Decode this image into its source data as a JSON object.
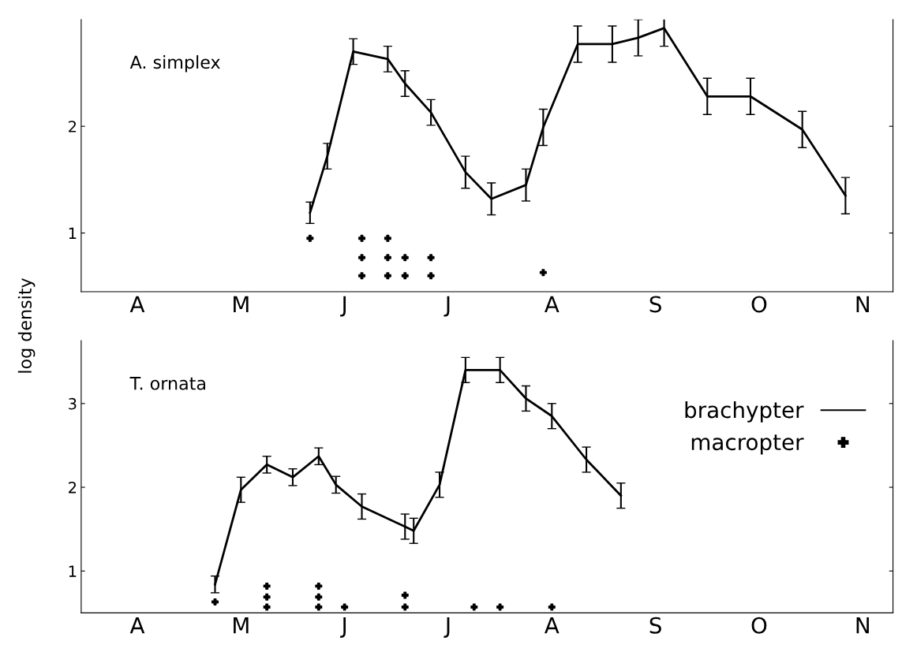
{
  "chart_data": [
    {
      "type": "line",
      "ylabel": "log density",
      "annotations": [
        "A. simplex"
      ],
      "ylim": [
        0.45,
        3.0
      ],
      "yticks": [
        1,
        2
      ],
      "grid": false,
      "legend": false,
      "categories": [
        null,
        null,
        null,
        null,
        null,
        null,
        "A",
        null,
        null,
        null,
        null,
        null,
        null,
        null,
        null,
        null,
        null,
        null,
        "M",
        null,
        null,
        null,
        null,
        null,
        null,
        null,
        null,
        null,
        null,
        null,
        "J",
        null,
        null,
        null,
        null,
        null,
        null,
        null,
        null,
        null,
        null,
        null,
        "J",
        null,
        null,
        null,
        null,
        null,
        null,
        null,
        null,
        null,
        null,
        null,
        "A",
        null,
        null,
        null,
        null,
        null,
        null,
        null,
        null,
        null,
        null,
        null,
        "S",
        null,
        null,
        null,
        null,
        null,
        null,
        null,
        null,
        null,
        null,
        null,
        "O",
        null,
        null,
        null,
        null,
        null,
        null,
        null,
        null,
        null,
        null,
        null,
        "N",
        null,
        null,
        null
      ],
      "series": [
        {
          "type": "line",
          "color": "#000000",
          "marker": "none",
          "line_style": "solid",
          "values": [
            null,
            null,
            null,
            null,
            null,
            null,
            null,
            null,
            null,
            null,
            null,
            null,
            null,
            null,
            null,
            null,
            null,
            null,
            null,
            null,
            null,
            null,
            null,
            null,
            null,
            null,
            1.19,
            null,
            1.72,
            null,
            null,
            2.7,
            null,
            null,
            null,
            2.63,
            null,
            2.4,
            null,
            null,
            2.13,
            null,
            null,
            null,
            1.57,
            null,
            null,
            1.32,
            null,
            null,
            null,
            1.45,
            null,
            1.99,
            null,
            null,
            null,
            2.77,
            null,
            null,
            null,
            2.77,
            null,
            null,
            2.83,
            null,
            null,
            2.92,
            null,
            null,
            null,
            null,
            2.28,
            null,
            null,
            null,
            null,
            2.28,
            null,
            null,
            null,
            null,
            null,
            1.97,
            null,
            null,
            null,
            null,
            1.35,
            null,
            null,
            null,
            null,
            null
          ],
          "errors": [
            null,
            null,
            null,
            null,
            null,
            null,
            null,
            null,
            null,
            null,
            null,
            null,
            null,
            null,
            null,
            null,
            null,
            null,
            null,
            null,
            null,
            null,
            null,
            null,
            null,
            null,
            0.1,
            null,
            0.12,
            null,
            null,
            0.12,
            null,
            null,
            null,
            0.12,
            null,
            0.12,
            null,
            null,
            0.12,
            null,
            null,
            null,
            0.15,
            null,
            null,
            0.15,
            null,
            null,
            null,
            0.15,
            null,
            0.17,
            null,
            null,
            null,
            0.17,
            null,
            null,
            null,
            0.17,
            null,
            null,
            0.17,
            null,
            null,
            0.17,
            null,
            null,
            null,
            null,
            0.17,
            null,
            null,
            null,
            null,
            0.17,
            null,
            null,
            null,
            null,
            null,
            0.17,
            null,
            null,
            null,
            null,
            0.17,
            null,
            null,
            null,
            null,
            null
          ]
        },
        {
          "type": "scatter",
          "color": "#000000",
          "marker": "cross",
          "values": [
            null,
            null,
            null,
            null,
            null,
            null,
            null,
            null,
            null,
            null,
            null,
            null,
            null,
            null,
            null,
            null,
            null,
            null,
            null,
            null,
            null,
            null,
            null,
            null,
            null,
            null,
            0.95,
            null,
            null,
            null,
            null,
            null,
            0.95,
            null,
            null,
            0.95,
            null,
            null,
            null,
            null,
            null,
            null,
            null,
            null,
            null,
            null,
            null,
            null,
            null,
            null,
            null,
            null,
            null,
            null,
            null,
            null,
            null,
            null,
            null,
            null,
            null,
            null,
            null,
            null,
            null,
            null,
            null,
            null,
            null,
            null,
            null,
            null,
            null,
            null,
            null,
            null,
            null,
            null,
            null,
            null,
            null,
            null,
            null,
            null,
            null,
            null,
            null,
            null,
            null,
            null,
            null,
            null,
            null,
            null
          ]
        },
        {
          "type": "scatter",
          "color": "#000000",
          "marker": "cross",
          "values": [
            null,
            null,
            null,
            null,
            null,
            null,
            null,
            null,
            null,
            null,
            null,
            null,
            null,
            null,
            null,
            null,
            null,
            null,
            null,
            null,
            null,
            null,
            null,
            null,
            null,
            null,
            null,
            null,
            null,
            null,
            null,
            null,
            0.77,
            null,
            null,
            0.77,
            null,
            0.77,
            null,
            null,
            0.77,
            null,
            null,
            null,
            null,
            null,
            null,
            null,
            null,
            null,
            null,
            null,
            null,
            null,
            null,
            null,
            null,
            null,
            null,
            null,
            null,
            null,
            null,
            null,
            null,
            null,
            null,
            null,
            null,
            null,
            null,
            null,
            null,
            null,
            null,
            null,
            null,
            null,
            null,
            null,
            null,
            null,
            null,
            null,
            null,
            null,
            null,
            null,
            null,
            null,
            null,
            null,
            null,
            null
          ]
        },
        {
          "type": "scatter",
          "color": "#000000",
          "marker": "cross",
          "values": [
            null,
            null,
            null,
            null,
            null,
            null,
            null,
            null,
            null,
            null,
            null,
            null,
            null,
            null,
            null,
            null,
            null,
            null,
            null,
            null,
            null,
            null,
            null,
            null,
            null,
            null,
            null,
            null,
            null,
            null,
            null,
            null,
            0.6,
            null,
            null,
            0.6,
            null,
            0.6,
            null,
            null,
            0.6,
            null,
            null,
            null,
            null,
            null,
            null,
            null,
            null,
            null,
            null,
            null,
            null,
            0.63,
            null,
            null,
            null,
            null,
            null,
            null,
            null,
            null,
            null,
            null,
            null,
            null,
            null,
            null,
            null,
            null,
            null,
            null,
            null,
            null,
            null,
            null,
            null,
            null,
            null,
            null,
            null,
            null,
            null,
            null,
            null,
            null,
            null,
            null,
            null,
            null,
            null,
            null,
            null,
            null
          ]
        }
      ]
    },
    {
      "type": "line",
      "annotations": [
        "T. ornata"
      ],
      "ylim": [
        0.5,
        3.75
      ],
      "yticks": [
        1,
        2,
        3
      ],
      "grid": false,
      "legend": "top right",
      "categories": [
        null,
        null,
        null,
        null,
        null,
        null,
        "A",
        null,
        null,
        null,
        null,
        null,
        null,
        null,
        null,
        null,
        null,
        null,
        "M",
        null,
        null,
        null,
        null,
        null,
        null,
        null,
        null,
        null,
        null,
        null,
        "J",
        null,
        null,
        null,
        null,
        null,
        null,
        null,
        null,
        null,
        null,
        null,
        "J",
        null,
        null,
        null,
        null,
        null,
        null,
        null,
        null,
        null,
        null,
        null,
        "A",
        null,
        null,
        null,
        null,
        null,
        null,
        null,
        null,
        null,
        null,
        null,
        "S",
        null,
        null,
        null,
        null,
        null,
        null,
        null,
        null,
        null,
        null,
        null,
        "O",
        null,
        null,
        null,
        null,
        null,
        null,
        null,
        null,
        null,
        null,
        null,
        "N",
        null,
        null,
        null
      ],
      "series": [
        {
          "type": "line",
          "name": "brachypter",
          "color": "#000000",
          "marker": "none",
          "line_style": "solid",
          "values": [
            null,
            null,
            null,
            null,
            null,
            null,
            null,
            null,
            null,
            null,
            null,
            null,
            null,
            null,
            null,
            0.84,
            null,
            null,
            1.97,
            null,
            null,
            2.27,
            null,
            null,
            2.12,
            null,
            null,
            2.37,
            null,
            2.03,
            null,
            null,
            1.77,
            null,
            null,
            null,
            null,
            1.53,
            1.48,
            null,
            null,
            2.03,
            null,
            null,
            3.4,
            null,
            null,
            null,
            3.4,
            null,
            null,
            3.06,
            null,
            null,
            2.85,
            null,
            null,
            null,
            2.33,
            null,
            null,
            null,
            1.9,
            null,
            null,
            null,
            null,
            null,
            null,
            null,
            null,
            null,
            null,
            null,
            null,
            null,
            null,
            null,
            null,
            null,
            null,
            null,
            null,
            null,
            null,
            null,
            null,
            null,
            null,
            null,
            null,
            null,
            null,
            null
          ],
          "errors": [
            null,
            null,
            null,
            null,
            null,
            null,
            null,
            null,
            null,
            null,
            null,
            null,
            null,
            null,
            null,
            0.1,
            null,
            null,
            0.15,
            null,
            null,
            0.1,
            null,
            null,
            0.1,
            null,
            null,
            0.1,
            null,
            0.1,
            null,
            null,
            0.15,
            null,
            null,
            null,
            null,
            0.15,
            0.15,
            null,
            null,
            0.15,
            null,
            null,
            0.15,
            null,
            null,
            null,
            0.15,
            null,
            null,
            0.15,
            null,
            null,
            0.15,
            null,
            null,
            null,
            0.15,
            null,
            null,
            null,
            0.15,
            null,
            null,
            null,
            null,
            null,
            null,
            null,
            null,
            null,
            null,
            null,
            null,
            null,
            null,
            null,
            null,
            null,
            null,
            null,
            null,
            null,
            null,
            null,
            null,
            null,
            null,
            null,
            null,
            null,
            null,
            null
          ]
        },
        {
          "type": "scatter",
          "name": "macropter",
          "color": "#000000",
          "marker": "cross",
          "values": [
            null,
            null,
            null,
            null,
            null,
            null,
            null,
            null,
            null,
            null,
            null,
            null,
            null,
            null,
            null,
            0.63,
            null,
            null,
            null,
            null,
            null,
            0.82,
            null,
            null,
            null,
            null,
            null,
            0.82,
            null,
            null,
            null,
            null,
            null,
            null,
            null,
            null,
            null,
            0.71,
            null,
            null,
            null,
            null,
            null,
            null,
            null,
            null,
            null,
            null,
            null,
            null,
            null,
            null,
            null,
            null,
            null,
            null,
            null,
            null,
            null,
            null,
            null,
            null,
            null,
            null,
            null,
            null,
            null,
            null,
            null,
            null,
            null,
            null,
            null,
            null,
            null,
            null,
            null,
            null,
            null,
            null,
            null,
            null,
            null,
            null,
            null,
            null,
            null,
            null,
            null,
            null,
            null,
            null,
            null,
            null
          ]
        },
        {
          "type": "scatter",
          "color": "#000000",
          "marker": "cross",
          "values": [
            null,
            null,
            null,
            null,
            null,
            null,
            null,
            null,
            null,
            null,
            null,
            null,
            null,
            null,
            null,
            null,
            null,
            null,
            null,
            null,
            null,
            0.69,
            null,
            null,
            null,
            null,
            null,
            0.69,
            null,
            null,
            null,
            null,
            null,
            null,
            null,
            null,
            null,
            0.57,
            null,
            null,
            null,
            null,
            null,
            null,
            null,
            null,
            null,
            null,
            null,
            null,
            null,
            null,
            null,
            null,
            null,
            null,
            null,
            null,
            null,
            null,
            null,
            null,
            null,
            null,
            null,
            null,
            null,
            null,
            null,
            null,
            null,
            null,
            null,
            null,
            null,
            null,
            null,
            null,
            null,
            null,
            null,
            null,
            null,
            null,
            null,
            null,
            null,
            null,
            null,
            null,
            null,
            null,
            null,
            null
          ]
        },
        {
          "type": "scatter",
          "color": "#000000",
          "marker": "cross",
          "values": [
            null,
            null,
            null,
            null,
            null,
            null,
            null,
            null,
            null,
            null,
            null,
            null,
            null,
            null,
            null,
            null,
            null,
            null,
            null,
            null,
            null,
            0.57,
            null,
            null,
            null,
            null,
            null,
            0.57,
            null,
            null,
            0.57,
            null,
            null,
            null,
            null,
            null,
            null,
            null,
            null,
            null,
            null,
            null,
            null,
            null,
            null,
            0.57,
            null,
            null,
            0.57,
            null,
            null,
            null,
            null,
            null,
            0.57,
            null,
            null,
            null,
            null,
            null,
            null,
            null,
            null,
            null,
            null,
            null,
            null,
            null,
            null,
            null,
            null,
            null,
            null,
            null,
            null,
            null,
            null,
            null,
            null,
            null,
            null,
            null,
            null,
            null,
            null,
            null,
            null,
            null,
            null,
            null,
            null,
            null,
            null,
            null
          ]
        }
      ]
    }
  ]
}
